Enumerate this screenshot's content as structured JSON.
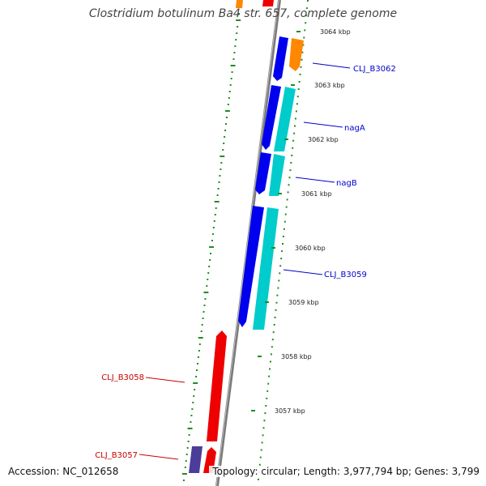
{
  "title": "Clostridium botulinum Ba4 str. 657, complete genome",
  "accession": "Accession: NC_012658",
  "summary": "Topology: circular; Length: 3,977,794 bp; Genes: 3,799",
  "colors": {
    "forward_gene": "#0000ee",
    "reverse_gene": "#ee0000",
    "cyan_gene": "#00cccc",
    "orange_gene": "#ff8800",
    "purple_gene": "#4b3d9a",
    "forward_label": "#0000cc",
    "reverse_label": "#cc0000",
    "axis": "#888888",
    "gc_dots": "#228b22"
  },
  "ticks": [
    {
      "label": "3064 kbp"
    },
    {
      "label": "3063 kbp"
    },
    {
      "label": "3062 kbp"
    },
    {
      "label": "3061 kbp"
    },
    {
      "label": "3060 kbp"
    },
    {
      "label": "3059 kbp"
    },
    {
      "label": "3058 kbp"
    },
    {
      "label": "3057 kbp"
    }
  ],
  "gene_labels": [
    {
      "text": "CLJ_B3062",
      "strand": "forward"
    },
    {
      "text": "nagA",
      "strand": "forward"
    },
    {
      "text": "nagB",
      "strand": "forward"
    },
    {
      "text": "CLJ_B3059",
      "strand": "forward"
    },
    {
      "text": "CLJ_B3058",
      "strand": "reverse"
    },
    {
      "text": "CLJ_B3057",
      "strand": "reverse"
    }
  ]
}
